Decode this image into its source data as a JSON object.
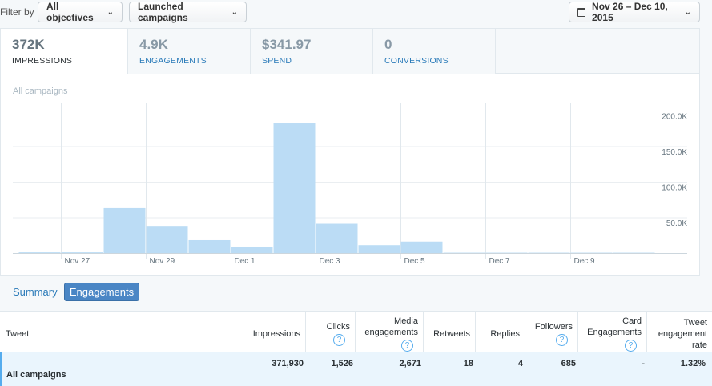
{
  "filter": {
    "label": "Filter by",
    "objectives": "All objectives",
    "campaigns": "Launched campaigns",
    "date_range": "Nov 26 – Dec 10, 2015"
  },
  "tabs": [
    {
      "value": "372K",
      "label": "IMPRESSIONS"
    },
    {
      "value": "4.9K",
      "label": "ENGAGEMENTS"
    },
    {
      "value": "$341.97",
      "label": "SPEND"
    },
    {
      "value": "0",
      "label": "CONVERSIONS"
    }
  ],
  "chart_title": "All campaigns",
  "chart_data": {
    "type": "bar",
    "categories": [
      "Nov 26",
      "Nov 27",
      "Nov 28",
      "Nov 29",
      "Nov 30",
      "Dec 1",
      "Dec 2",
      "Dec 3",
      "Dec 4",
      "Dec 5",
      "Dec 6",
      "Dec 7",
      "Dec 8",
      "Dec 9",
      "Dec 10"
    ],
    "values": [
      1000,
      1000,
      63000,
      38000,
      18000,
      9000,
      182000,
      41000,
      11000,
      16000,
      500,
      500,
      500,
      500,
      500
    ],
    "ylim": [
      0,
      200000
    ],
    "y_ticks": [
      "50.0K",
      "100.0K",
      "150.0K",
      "200.0K"
    ],
    "x_tick_labels": [
      "Nov 27",
      "Nov 29",
      "Dec 1",
      "Dec 3",
      "Dec 5",
      "Dec 7",
      "Dec 9"
    ],
    "color": "#bbdcf5",
    "grid": true
  },
  "view": {
    "summary_label": "Summary",
    "engagements_label": "Engagements"
  },
  "table": {
    "headers": {
      "tweet": "Tweet",
      "impressions": "Impressions",
      "clicks": "Clicks",
      "media": [
        "Media",
        "engagements"
      ],
      "retweets": "Retweets",
      "replies": "Replies",
      "followers": "Followers",
      "card": [
        "Card",
        "Engagements"
      ],
      "rate": [
        "Tweet",
        "engagement",
        "rate"
      ]
    },
    "help_icon": "?",
    "row": {
      "name": "All campaigns",
      "impressions": "371,930",
      "clicks": "1,526",
      "media": "2,671",
      "retweets": "18",
      "replies": "4",
      "followers": "685",
      "card": "-",
      "rate": "1.32%"
    }
  }
}
